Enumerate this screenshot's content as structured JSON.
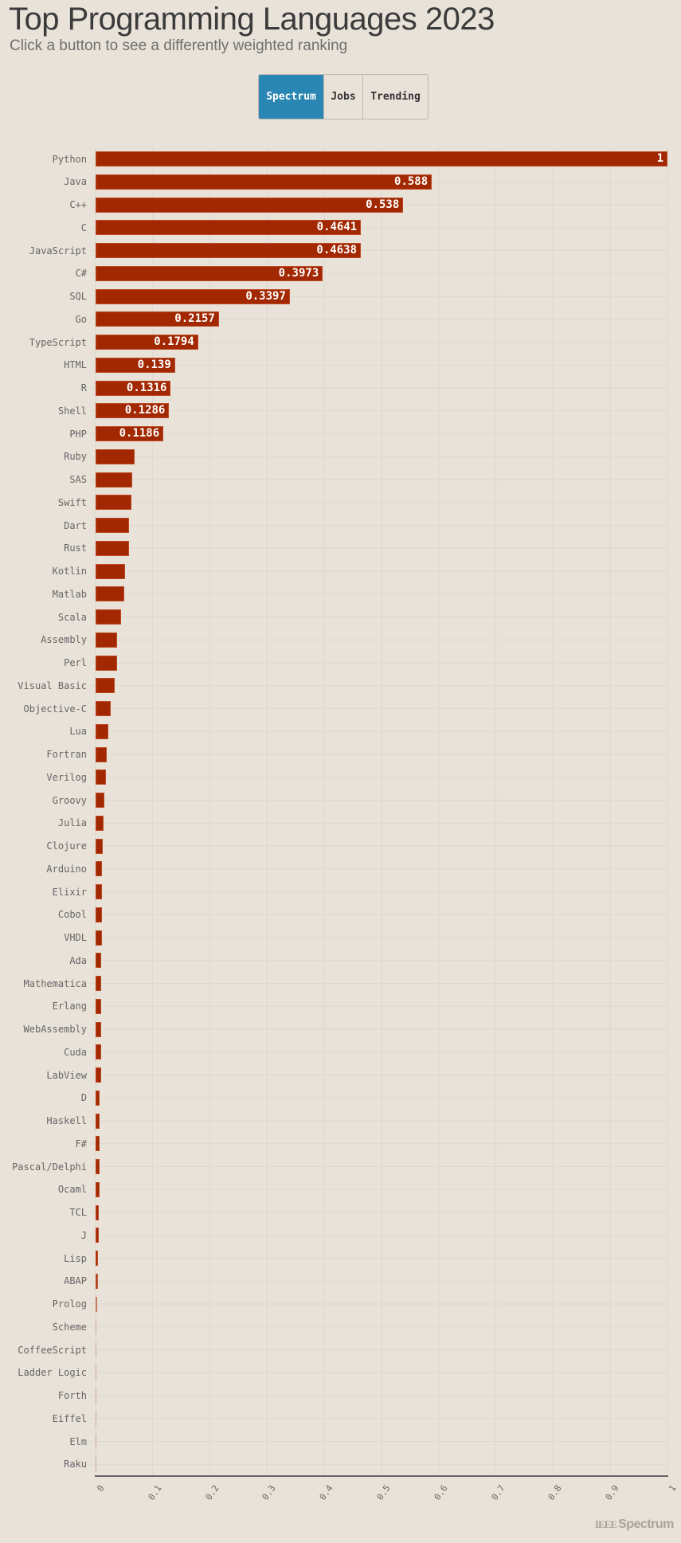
{
  "header": {
    "title": "Top Programming Languages 2023",
    "subtitle": "Click a button to see a differently weighted ranking"
  },
  "buttons": [
    {
      "label": "Spectrum",
      "active": true
    },
    {
      "label": "Jobs",
      "active": false
    },
    {
      "label": "Trending",
      "active": false
    }
  ],
  "footer": {
    "logo_ieee": "IEEE",
    "logo_spectrum": "Spectrum"
  },
  "colors": {
    "bar": "#a12800",
    "active_button": "#2a86b2",
    "background": "#e8e2d9",
    "grid": "#ddd8d0",
    "axis": "#666666"
  },
  "chart_data": {
    "type": "bar",
    "orientation": "horizontal",
    "title": "Top Programming Languages 2023",
    "subtitle": "Click a button to see a differently weighted ranking",
    "xlabel": "",
    "ylabel": "",
    "xlim": [
      0,
      1
    ],
    "x_ticks": [
      "0",
      "0.1",
      "0.2",
      "0.3",
      "0.4",
      "0.5",
      "0.6",
      "0.7",
      "0.8",
      "0.9",
      "1"
    ],
    "grid": true,
    "legend": null,
    "categories": [
      "Python",
      "Java",
      "C++",
      "C",
      "JavaScript",
      "C#",
      "SQL",
      "Go",
      "TypeScript",
      "HTML",
      "R",
      "Shell",
      "PHP",
      "Ruby",
      "SAS",
      "Swift",
      "Dart",
      "Rust",
      "Kotlin",
      "Matlab",
      "Scala",
      "Assembly",
      "Perl",
      "Visual Basic",
      "Objective-C",
      "Lua",
      "Fortran",
      "Verilog",
      "Groovy",
      "Julia",
      "Clojure",
      "Arduino",
      "Elixir",
      "Cobol",
      "VHDL",
      "Ada",
      "Mathematica",
      "Erlang",
      "WebAssembly",
      "Cuda",
      "LabView",
      "D",
      "Haskell",
      "F#",
      "Pascal/Delphi",
      "Ocaml",
      "TCL",
      "J",
      "Lisp",
      "ABAP",
      "Prolog",
      "Scheme",
      "CoffeeScript",
      "Ladder Logic",
      "Forth",
      "Eiffel",
      "Elm",
      "Raku"
    ],
    "values": [
      1,
      0.588,
      0.538,
      0.4641,
      0.4638,
      0.3973,
      0.3397,
      0.2157,
      0.1794,
      0.139,
      0.1316,
      0.1286,
      0.1186,
      0.068,
      0.064,
      0.063,
      0.059,
      0.058,
      0.052,
      0.05,
      0.045,
      0.038,
      0.037,
      0.033,
      0.027,
      0.022,
      0.019,
      0.018,
      0.015,
      0.014,
      0.012,
      0.0116,
      0.0113,
      0.0107,
      0.0105,
      0.0104,
      0.0102,
      0.0098,
      0.0095,
      0.0093,
      0.0093,
      0.007,
      0.0069,
      0.0068,
      0.0066,
      0.0065,
      0.0061,
      0.0056,
      0.0046,
      0.0037,
      0.0028,
      0.0014,
      0.0013,
      0.0012,
      0.0006,
      0.0004,
      0.0002,
      0.0001
    ],
    "value_labels": [
      "1",
      "0.588",
      "0.538",
      "0.4641",
      "0.4638",
      "0.3973",
      "0.3397",
      "0.2157",
      "0.1794",
      "0.139",
      "0.1316",
      "0.1286",
      "0.1186",
      "",
      "",
      "",
      "",
      "",
      "",
      "",
      "",
      "",
      "",
      "",
      "",
      "",
      "",
      "",
      "",
      "",
      "",
      "",
      "",
      "",
      "",
      "",
      "",
      "",
      "",
      "",
      "",
      "",
      "",
      "",
      "",
      "",
      "",
      "",
      "",
      "",
      "",
      "",
      "",
      "",
      "",
      "",
      "",
      ""
    ]
  }
}
